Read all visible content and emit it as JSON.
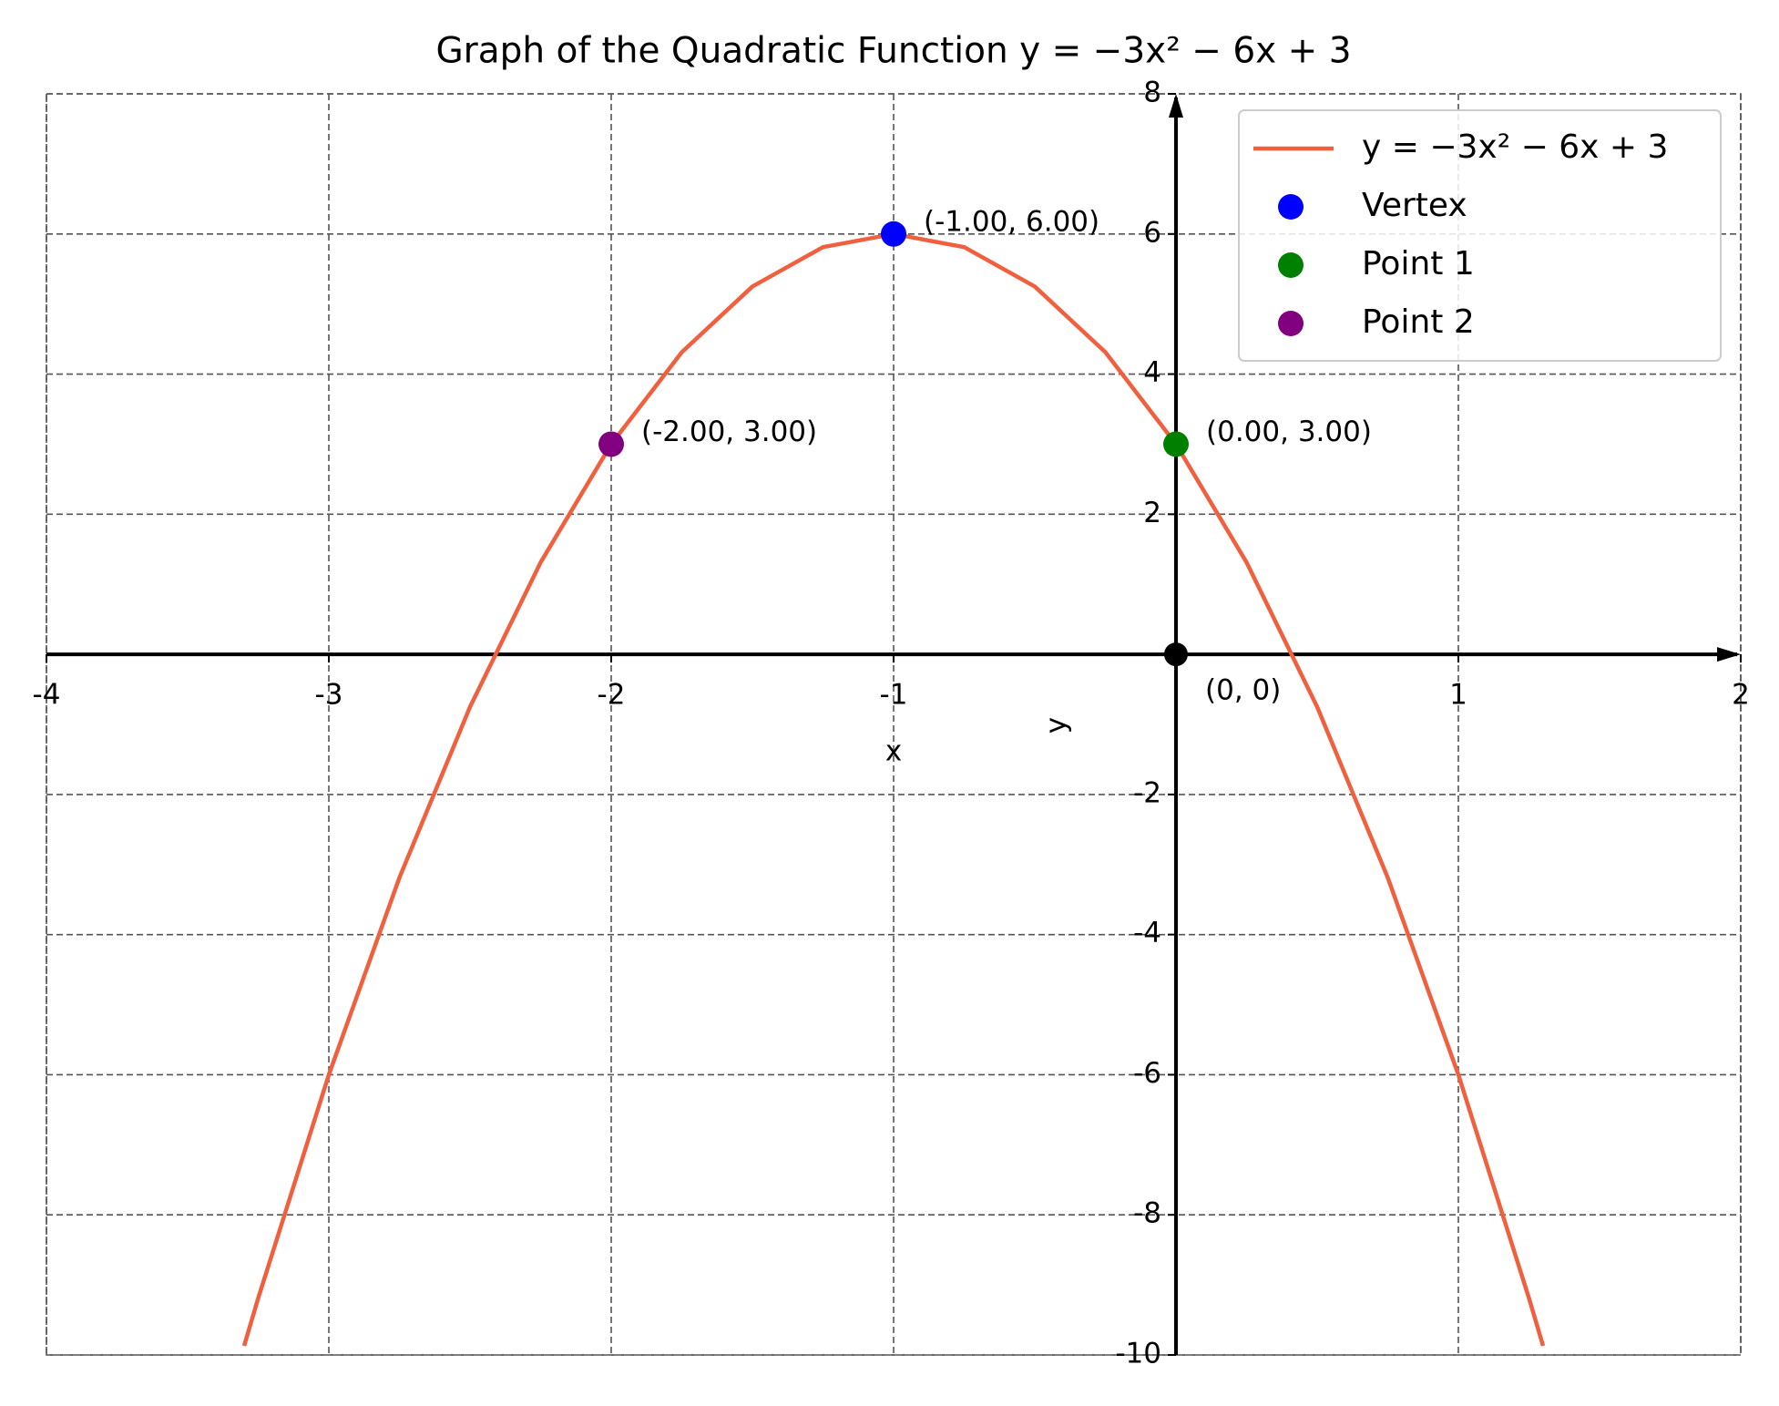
{
  "chart_data": {
    "type": "line",
    "title": "Graph of the Quadratic Function y = −3x² − 6x + 3",
    "x_label": "x",
    "y_label": "y",
    "xlim": [
      -4,
      2
    ],
    "ylim": [
      -10,
      8
    ],
    "xticks": [
      -4,
      -3,
      -2,
      -1,
      1,
      2
    ],
    "yticks": [
      -10,
      -8,
      -6,
      -4,
      -2,
      2,
      4,
      6,
      8
    ],
    "grid": true,
    "legend": "upper right",
    "series": [
      {
        "name": "y = −3x² − 6x + 3",
        "type": "line",
        "color": "#f0603f",
        "x": [
          -3.3,
          -3.25,
          -3,
          -2.75,
          -2.5,
          -2.25,
          -2,
          -1.75,
          -1.5,
          -1.25,
          -1,
          -0.75,
          -0.5,
          -0.25,
          0,
          0.25,
          0.5,
          0.75,
          1,
          1.25,
          1.3
        ],
        "values": [
          -9.87,
          -9.1875,
          -6,
          -3.1875,
          -0.75,
          1.3125,
          3,
          4.3125,
          5.25,
          5.8125,
          6,
          5.8125,
          5.25,
          4.3125,
          3,
          1.3125,
          -0.75,
          -3.1875,
          -6,
          -9.1875,
          -9.87
        ]
      },
      {
        "name": "Vertex",
        "type": "scatter",
        "color": "#0000ff",
        "x": [
          -1
        ],
        "values": [
          6
        ],
        "value_labels": [
          "(-1.00, 6.00)"
        ]
      },
      {
        "name": "Point 1",
        "type": "scatter",
        "color": "#008000",
        "x": [
          0
        ],
        "values": [
          3
        ],
        "value_labels": [
          "(0.00, 3.00)"
        ]
      },
      {
        "name": "Point 2",
        "type": "scatter",
        "color": "#800080",
        "x": [
          -2
        ],
        "values": [
          3
        ],
        "value_labels": [
          "(-2.00, 3.00)"
        ]
      }
    ],
    "annotations": [
      {
        "x": 0,
        "y": 0,
        "label": "(0, 0)",
        "color": "#000000"
      }
    ]
  }
}
